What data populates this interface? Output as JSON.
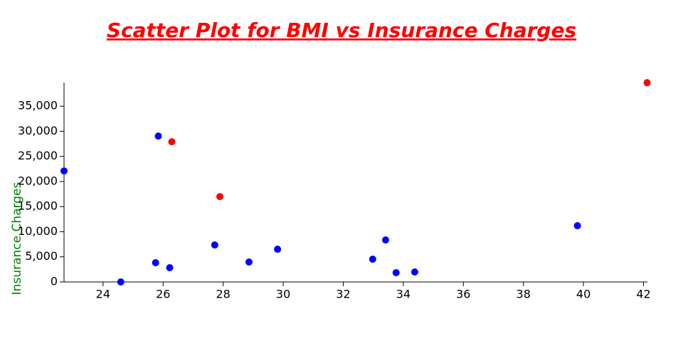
{
  "chart_data": {
    "type": "scatter",
    "title": "Scatter Plot for BMI vs Insurance Charges",
    "y_label": "Insurance Charges",
    "series": [
      {
        "color": "#0000ff",
        "x": [
          22.7,
          24.59,
          25.84,
          25.75,
          26.22,
          27.72,
          28.86,
          29.81,
          32.98,
          33.41,
          33.76,
          34.38,
          39.8
        ],
        "values": [
          22106,
          0,
          29049,
          3826,
          2834,
          7369,
          3968,
          6518,
          4534,
          8360,
          1842,
          1984,
          11195
        ]
      },
      {
        "color": "#ff0000",
        "x": [
          26.29,
          27.89,
          42.12
        ],
        "values": [
          27916,
          17004,
          39677
        ]
      }
    ],
    "xlim": [
      22.7,
      42.13
    ],
    "ylim": [
      0,
      39700
    ],
    "xticks": [
      24,
      26,
      28,
      30,
      32,
      34,
      36,
      38,
      40,
      42
    ],
    "yticks": [
      0,
      {
        "value": 5000,
        "label": "5,000"
      },
      {
        "value": 10000,
        "label": "10,000"
      },
      {
        "value": 15000,
        "label": "15,000"
      },
      {
        "value": 20000,
        "label": "20,000"
      },
      {
        "value": 25000,
        "label": "25,000"
      },
      {
        "value": 30000,
        "label": "30,000"
      },
      {
        "value": 35000,
        "label": "35,000"
      }
    ]
  }
}
